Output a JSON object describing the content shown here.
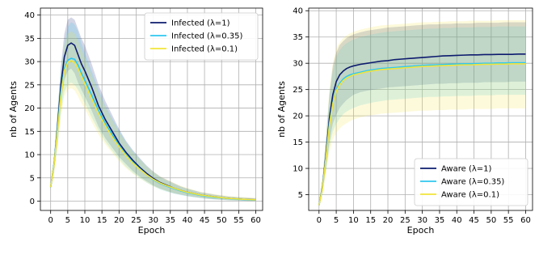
{
  "chart_data": [
    {
      "type": "line",
      "xlabel": "Epoch",
      "ylabel": "nb of Agents",
      "xlim": [
        -3,
        62
      ],
      "ylim": [
        -2,
        41.5
      ],
      "xticks": [
        0,
        5,
        10,
        15,
        20,
        25,
        30,
        35,
        40,
        45,
        50,
        55,
        60
      ],
      "yticks": [
        0,
        5,
        10,
        15,
        20,
        25,
        30,
        35,
        40
      ],
      "grid": true,
      "legend_position": "top-right",
      "x": [
        0,
        1,
        2,
        3,
        4,
        5,
        6,
        7,
        8,
        9,
        10,
        12,
        14,
        16,
        18,
        20,
        22,
        24,
        26,
        28,
        30,
        32,
        34,
        36,
        38,
        40,
        42,
        44,
        46,
        48,
        50,
        52,
        54,
        56,
        58,
        60
      ],
      "series": [
        {
          "name": "Infected (λ=1)",
          "color": "#0d1b6e",
          "values": [
            3,
            8,
            16,
            25,
            31,
            33.5,
            34,
            33.5,
            31.5,
            29.5,
            28,
            24.5,
            20.5,
            17.5,
            15,
            12.5,
            10.5,
            8.8,
            7.3,
            6,
            4.9,
            4,
            3.4,
            2.8,
            2.3,
            1.9,
            1.6,
            1.3,
            1.1,
            0.9,
            0.7,
            0.6,
            0.5,
            0.4,
            0.35,
            0.3
          ],
          "band_low": [
            2.6,
            6.5,
            13,
            21,
            26,
            28,
            28.5,
            27.5,
            25.5,
            24,
            22.5,
            19.5,
            16,
            13.5,
            11.5,
            9.5,
            8,
            6.5,
            5.3,
            4.3,
            3.4,
            2.7,
            2.2,
            1.7,
            1.4,
            1.1,
            0.9,
            0.7,
            0.5,
            0.4,
            0.3,
            0.2,
            0.15,
            0.1,
            0.05,
            0
          ],
          "band_high": [
            3.4,
            9.5,
            19,
            29,
            36,
            39,
            39.5,
            39,
            37,
            35,
            33.5,
            29.5,
            25,
            21.5,
            18.5,
            15.5,
            13,
            11,
            9.3,
            7.7,
            6.4,
            5.3,
            4.6,
            3.9,
            3.2,
            2.7,
            2.3,
            1.9,
            1.7,
            1.4,
            1.2,
            1,
            0.9,
            0.8,
            0.7,
            0.6
          ]
        },
        {
          "name": "Infected (λ=0.35)",
          "color": "#2ec8f0",
          "values": [
            3,
            8,
            15.5,
            23.5,
            28.5,
            30.3,
            30.7,
            30.5,
            29.3,
            27.5,
            26,
            22.8,
            19.5,
            16.7,
            14.3,
            12,
            10,
            8.4,
            7,
            5.7,
            4.6,
            3.8,
            3.2,
            2.7,
            2.2,
            1.8,
            1.5,
            1.2,
            1,
            0.8,
            0.7,
            0.55,
            0.45,
            0.35,
            0.3,
            0.25
          ],
          "band_low": [
            2.5,
            6.2,
            12,
            19,
            23.5,
            25,
            25.5,
            25,
            24,
            22.5,
            21,
            18,
            15.2,
            12.8,
            10.8,
            9,
            7.4,
            6.1,
            5,
            4,
            3.2,
            2.5,
            2,
            1.6,
            1.3,
            1,
            0.8,
            0.6,
            0.45,
            0.35,
            0.25,
            0.2,
            0.12,
            0.08,
            0.04,
            0
          ],
          "band_high": [
            3.5,
            10,
            19.5,
            28.5,
            34,
            37.5,
            38.5,
            38,
            36.5,
            34,
            32,
            28,
            24,
            20.5,
            17.8,
            15.2,
            12.8,
            10.8,
            9.1,
            7.5,
            6.2,
            5.2,
            4.4,
            3.7,
            3.1,
            2.6,
            2.2,
            1.8,
            1.5,
            1.3,
            1.1,
            0.9,
            0.8,
            0.7,
            0.6,
            0.5
          ]
        },
        {
          "name": "Infected (λ=0.1)",
          "color": "#f2e43a",
          "values": [
            3,
            7.8,
            15,
            22.5,
            28,
            29.8,
            30.2,
            29.8,
            28.5,
            26.8,
            25.2,
            22,
            18.8,
            16.2,
            13.8,
            11.7,
            9.8,
            8.2,
            6.9,
            5.7,
            4.7,
            3.9,
            3.3,
            2.8,
            2.3,
            1.9,
            1.6,
            1.3,
            1.1,
            0.9,
            0.75,
            0.6,
            0.5,
            0.4,
            0.35,
            0.3
          ],
          "band_low": [
            2.4,
            6,
            11.5,
            18,
            22.5,
            24,
            24.3,
            23.8,
            22.5,
            21,
            19.8,
            17,
            14.3,
            12.2,
            10.3,
            8.6,
            7.1,
            5.9,
            4.9,
            4,
            3.2,
            2.6,
            2.1,
            1.7,
            1.4,
            1.1,
            0.9,
            0.7,
            0.5,
            0.4,
            0.3,
            0.2,
            0.15,
            0.1,
            0.05,
            0
          ],
          "band_high": [
            3.6,
            9.8,
            19,
            27.5,
            33.5,
            36,
            36.5,
            36,
            34.5,
            32.5,
            30.8,
            27,
            23.3,
            20.2,
            17.4,
            14.8,
            12.6,
            10.6,
            9,
            7.5,
            6.3,
            5.3,
            4.6,
            3.9,
            3.3,
            2.8,
            2.4,
            2,
            1.7,
            1.5,
            1.3,
            1.1,
            1,
            0.9,
            0.8,
            0.7
          ]
        }
      ]
    },
    {
      "type": "line",
      "xlabel": "Epoch",
      "ylabel": "nb of Agents",
      "xlim": [
        -3,
        62
      ],
      "ylim": [
        2,
        40.5
      ],
      "xticks": [
        0,
        5,
        10,
        15,
        20,
        25,
        30,
        35,
        40,
        45,
        50,
        55,
        60
      ],
      "yticks": [
        5,
        10,
        15,
        20,
        25,
        30,
        35,
        40
      ],
      "grid": true,
      "legend_position": "bottom-right",
      "x": [
        0,
        1,
        2,
        3,
        4,
        5,
        6,
        7,
        8,
        9,
        10,
        12,
        14,
        16,
        18,
        20,
        22,
        24,
        26,
        28,
        30,
        32,
        34,
        36,
        38,
        40,
        42,
        44,
        46,
        48,
        50,
        52,
        54,
        56,
        58,
        60
      ],
      "series": [
        {
          "name": "Aware (λ=1)",
          "color": "#0d1b6e",
          "values": [
            3,
            6.5,
            12.5,
            19.5,
            24,
            26.5,
            27.8,
            28.5,
            29,
            29.3,
            29.5,
            29.8,
            30,
            30.2,
            30.4,
            30.5,
            30.7,
            30.8,
            30.9,
            31,
            31.1,
            31.2,
            31.3,
            31.4,
            31.45,
            31.5,
            31.55,
            31.6,
            31.6,
            31.65,
            31.65,
            31.7,
            31.7,
            31.7,
            31.75,
            31.75
          ],
          "band_low": [
            2.8,
            5.5,
            10,
            15,
            18.5,
            20.2,
            21.5,
            22.3,
            23,
            23.5,
            24,
            24.5,
            24.8,
            25,
            25.2,
            25.4,
            25.5,
            25.6,
            25.7,
            25.8,
            25.9,
            26,
            26.1,
            26.1,
            26.2,
            26.2,
            26.3,
            26.3,
            26.3,
            26.4,
            26.4,
            26.4,
            26.4,
            26.5,
            26.5,
            26.5
          ],
          "band_high": [
            3.3,
            7.8,
            15.5,
            24,
            29.5,
            32,
            33.5,
            34.2,
            34.8,
            35.2,
            35.5,
            35.9,
            36.2,
            36.4,
            36.6,
            36.8,
            36.9,
            37,
            37.1,
            37.2,
            37.3,
            37.4,
            37.4,
            37.5,
            37.5,
            37.6,
            37.6,
            37.6,
            37.7,
            37.7,
            37.7,
            37.7,
            37.8,
            37.8,
            37.8,
            37.8
          ]
        },
        {
          "name": "Aware (λ=0.35)",
          "color": "#2ec8f0",
          "values": [
            3,
            6.3,
            12,
            18.5,
            22.5,
            25,
            26.2,
            27,
            27.5,
            27.8,
            28,
            28.3,
            28.6,
            28.8,
            29,
            29.1,
            29.2,
            29.3,
            29.4,
            29.5,
            29.6,
            29.65,
            29.7,
            29.75,
            29.8,
            29.85,
            29.9,
            29.9,
            29.95,
            30,
            30,
            30.05,
            30.05,
            30.1,
            30.1,
            30.1
          ],
          "band_low": [
            2.7,
            5.2,
            9.5,
            14,
            17,
            18.5,
            19.5,
            20.3,
            20.8,
            21.2,
            21.5,
            22,
            22.3,
            22.6,
            22.8,
            23,
            23.1,
            23.2,
            23.3,
            23.4,
            23.5,
            23.6,
            23.6,
            23.7,
            23.7,
            23.8,
            23.8,
            23.8,
            23.9,
            23.9,
            23.9,
            24,
            24,
            24,
            24,
            24
          ],
          "band_high": [
            3.4,
            7.8,
            15.5,
            24,
            28.5,
            31.2,
            32.5,
            33.3,
            33.8,
            34.2,
            34.5,
            35,
            35.3,
            35.6,
            35.8,
            36,
            36.1,
            36.2,
            36.3,
            36.4,
            36.5,
            36.6,
            36.6,
            36.7,
            36.7,
            36.8,
            36.8,
            36.8,
            36.9,
            36.9,
            36.9,
            37,
            37,
            37,
            37,
            37
          ]
        },
        {
          "name": "Aware (λ=0.1)",
          "color": "#f2e43a",
          "values": [
            3,
            6.2,
            11.8,
            18,
            22.3,
            24.7,
            25.9,
            26.7,
            27.2,
            27.5,
            27.8,
            28.1,
            28.4,
            28.6,
            28.8,
            28.9,
            29,
            29.1,
            29.2,
            29.3,
            29.4,
            29.45,
            29.5,
            29.55,
            29.6,
            29.65,
            29.7,
            29.7,
            29.75,
            29.8,
            29.8,
            29.85,
            29.85,
            29.9,
            29.9,
            29.9
          ],
          "band_low": [
            2.6,
            5,
            9,
            13,
            15.5,
            16.8,
            17.6,
            18.2,
            18.6,
            19,
            19.3,
            19.7,
            20,
            20.2,
            20.4,
            20.5,
            20.6,
            20.7,
            20.8,
            20.9,
            21,
            21,
            21.1,
            21.1,
            21.2,
            21.2,
            21.2,
            21.3,
            21.3,
            21.3,
            21.3,
            21.4,
            21.4,
            21.4,
            21.4,
            21.4
          ],
          "band_high": [
            3.5,
            8,
            16,
            25,
            30,
            32.8,
            34,
            34.8,
            35.3,
            35.7,
            36,
            36.4,
            36.7,
            37,
            37.2,
            37.3,
            37.4,
            37.5,
            37.6,
            37.7,
            37.8,
            37.8,
            37.9,
            37.9,
            38,
            38,
            38,
            38.1,
            38.1,
            38.1,
            38.1,
            38.2,
            38.2,
            38.2,
            38.2,
            38.2
          ]
        }
      ]
    }
  ]
}
